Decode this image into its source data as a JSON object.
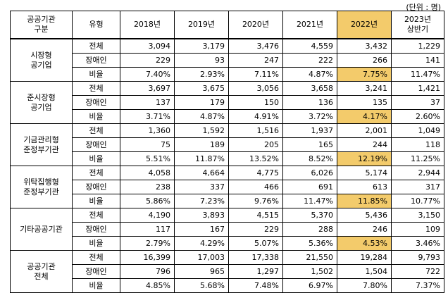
{
  "unit_label": "(단위 : 명)",
  "headers": {
    "group": "공공기관\n구분",
    "type": "유형",
    "years": [
      "2018년",
      "2019년",
      "2020년",
      "2021년",
      "2022년",
      "2023년\n상반기"
    ]
  },
  "highlight_color": "#f3cb6b",
  "groups": [
    {
      "name": "시장형\n공기업",
      "rows": [
        {
          "type": "전체",
          "values": [
            "3,094",
            "3,179",
            "3,476",
            "4,559",
            "3,432",
            "1,229"
          ]
        },
        {
          "type": "장애인",
          "values": [
            "229",
            "93",
            "247",
            "222",
            "266",
            "141"
          ]
        },
        {
          "type": "비율",
          "values": [
            "7.40%",
            "2.93%",
            "7.11%",
            "4.87%",
            "7.75%",
            "11.47%"
          ]
        }
      ]
    },
    {
      "name": "준시장형\n공기업",
      "rows": [
        {
          "type": "전체",
          "values": [
            "3,697",
            "3,675",
            "3,056",
            "3,658",
            "3,241",
            "1,421"
          ]
        },
        {
          "type": "장애인",
          "values": [
            "137",
            "179",
            "150",
            "136",
            "135",
            "37"
          ]
        },
        {
          "type": "비율",
          "values": [
            "3.71%",
            "4.87%",
            "4.91%",
            "3.72%",
            "4.17%",
            "2.60%"
          ]
        }
      ]
    },
    {
      "name": "기금관리형\n준정부기관",
      "rows": [
        {
          "type": "전체",
          "values": [
            "1,360",
            "1,592",
            "1,516",
            "1,937",
            "2,001",
            "1,049"
          ]
        },
        {
          "type": "장애인",
          "values": [
            "75",
            "189",
            "205",
            "165",
            "244",
            "118"
          ]
        },
        {
          "type": "비율",
          "values": [
            "5.51%",
            "11.87%",
            "13.52%",
            "8.52%",
            "12.19%",
            "11.25%"
          ]
        }
      ]
    },
    {
      "name": "위탁집행형\n준정부기관",
      "rows": [
        {
          "type": "전체",
          "values": [
            "4,058",
            "4,664",
            "4,775",
            "6,026",
            "5,174",
            "2,944"
          ]
        },
        {
          "type": "장애인",
          "values": [
            "238",
            "337",
            "466",
            "691",
            "613",
            "317"
          ]
        },
        {
          "type": "비율",
          "values": [
            "5.86%",
            "7.23%",
            "9.76%",
            "11.47%",
            "11.85%",
            "10.77%"
          ]
        }
      ]
    },
    {
      "name": "기타공공기관",
      "rows": [
        {
          "type": "전체",
          "values": [
            "4,190",
            "3,893",
            "4,515",
            "5,370",
            "5,436",
            "3,150"
          ]
        },
        {
          "type": "장애인",
          "values": [
            "117",
            "167",
            "229",
            "288",
            "246",
            "109"
          ]
        },
        {
          "type": "비율",
          "values": [
            "2.79%",
            "4.29%",
            "5.07%",
            "5.36%",
            "4.53%",
            "3.46%"
          ]
        }
      ]
    },
    {
      "name": "공공기관\n전체",
      "rows": [
        {
          "type": "전체",
          "values": [
            "16,399",
            "17,003",
            "17,338",
            "21,550",
            "19,284",
            "9,793"
          ]
        },
        {
          "type": "장애인",
          "values": [
            "796",
            "965",
            "1,297",
            "1,502",
            "1,504",
            "722"
          ]
        },
        {
          "type": "비율",
          "values": [
            "4.85%",
            "5.68%",
            "7.48%",
            "6.97%",
            "7.80%",
            "7.37%"
          ]
        }
      ]
    }
  ]
}
